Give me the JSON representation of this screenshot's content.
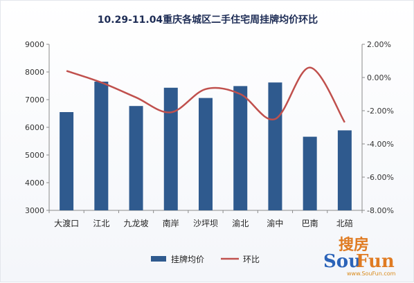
{
  "chart_data": {
    "type": "bar+line",
    "title": "10.29-11.04重庆各城区二手住宅周挂牌均价环比",
    "categories": [
      "大渡口",
      "江北",
      "九龙坡",
      "南岸",
      "沙坪坝",
      "渝北",
      "渝中",
      "巴南",
      "北碚"
    ],
    "series": [
      {
        "name": "挂牌均价",
        "type": "bar",
        "axis": "left",
        "color": "#2f5a8e",
        "values": [
          6550,
          7650,
          6770,
          7430,
          7060,
          7490,
          7620,
          5660,
          5890
        ]
      },
      {
        "name": "环比",
        "type": "line",
        "axis": "right",
        "color": "#c0504d",
        "values": [
          0.4,
          -0.3,
          -1.2,
          -2.1,
          -0.7,
          -1.0,
          -2.5,
          0.6,
          -2.7
        ]
      }
    ],
    "y_left": {
      "ylim": [
        3000,
        9000
      ],
      "ticks": [
        "3000",
        "4000",
        "5000",
        "6000",
        "7000",
        "8000",
        "9000"
      ]
    },
    "y_right": {
      "ylim": [
        -8,
        2
      ],
      "ticks": [
        "-8.00%",
        "-6.00%",
        "-4.00%",
        "-2.00%",
        "0.00%",
        "2.00%"
      ]
    },
    "grid": false,
    "legend_position": "bottom"
  },
  "watermark": {
    "cn": "搜房",
    "en_part1": "Sou",
    "en_part2": "Fun",
    "url": "www.SouFun.com"
  }
}
